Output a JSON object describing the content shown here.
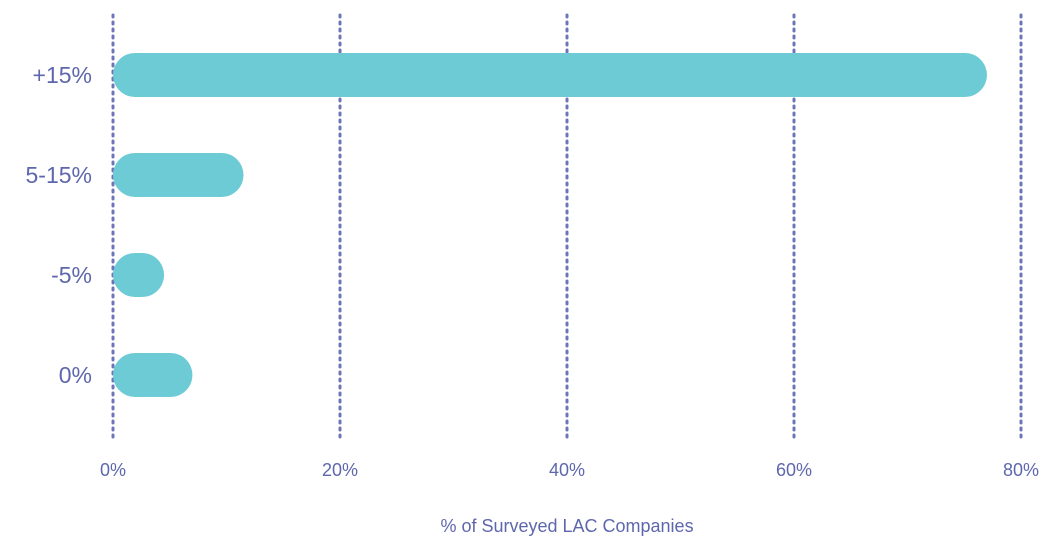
{
  "colors": {
    "bar": "#6ccbd4",
    "grid": "#6b75b8",
    "text": "#5e67ad",
    "background": "#ffffff"
  },
  "chart_data": {
    "type": "bar",
    "orientation": "horizontal",
    "categories": [
      "+15%",
      "5-15%",
      "-5%",
      "0%"
    ],
    "values": [
      77,
      11.5,
      4.5,
      7
    ],
    "xlabel": "% of Surveyed LAC Companies",
    "ylabel": "",
    "xlim": [
      0,
      80
    ],
    "xticks": [
      0,
      20,
      40,
      60,
      80
    ],
    "xtick_labels": [
      "0%",
      "20%",
      "40%",
      "60%",
      "80%"
    ],
    "grid": "vertical dotted",
    "legend": "none"
  }
}
